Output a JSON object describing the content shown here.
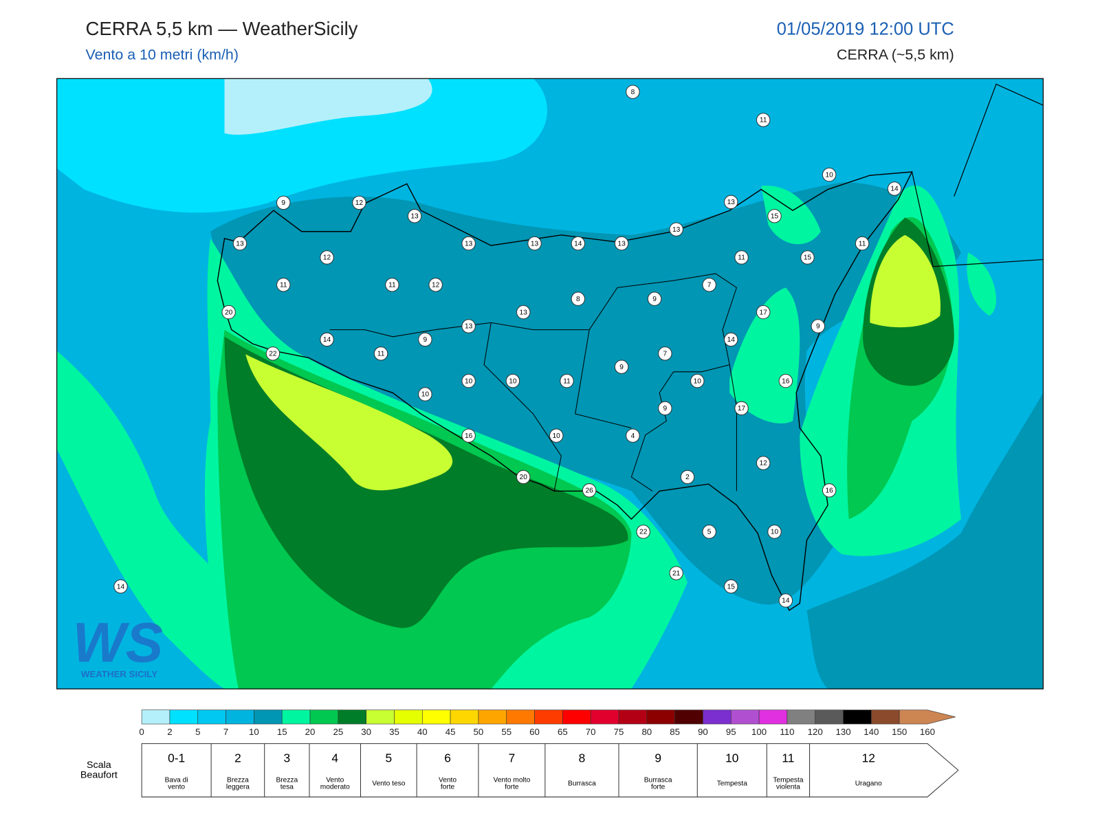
{
  "header": {
    "title": "CERRA 5,5 km — WeatherSicily",
    "subtitle": "Vento a 10 metri (km/h)",
    "datetime": "01/05/2019 12:00 UTC",
    "model": "CERRA (~5,5 km)"
  },
  "logo": {
    "mark": "WS",
    "name": "WEATHER SICILY"
  },
  "stations": [
    8,
    11,
    10,
    14,
    9,
    12,
    13,
    13,
    15,
    13,
    13,
    13,
    13,
    14,
    13,
    11,
    12,
    11,
    15,
    11,
    11,
    12,
    7,
    8,
    9,
    17,
    20,
    13,
    9,
    13,
    14,
    9,
    14,
    11,
    22,
    7,
    9,
    10,
    10,
    11,
    10,
    16,
    10,
    17,
    9,
    16,
    10,
    4,
    12,
    2,
    20,
    16,
    26,
    22,
    5,
    10,
    21,
    15,
    14,
    14
  ],
  "colorbar": {
    "ticks": [
      0,
      2,
      5,
      7,
      10,
      15,
      20,
      25,
      30,
      35,
      40,
      45,
      50,
      55,
      60,
      65,
      70,
      75,
      80,
      85,
      90,
      95,
      100,
      110,
      120,
      130,
      140,
      150,
      160
    ],
    "colors": [
      "#b4f0fb",
      "#00e1ff",
      "#00c8f0",
      "#00b4e0",
      "#0096b4",
      "#00f5a0",
      "#00c850",
      "#007d28",
      "#c8ff32",
      "#e6ff00",
      "#ffff00",
      "#ffd700",
      "#ffa500",
      "#ff7800",
      "#ff3c00",
      "#ff0000",
      "#e1002d",
      "#b40014",
      "#8c0000",
      "#500000",
      "#7b2fd0",
      "#b050d0",
      "#e030e0",
      "#808080",
      "#5a5a5a",
      "#000000",
      "#8b4a2b",
      "#cd8552"
    ]
  },
  "beaufort": {
    "title": [
      "Scala",
      "Beaufort"
    ],
    "levels": [
      {
        "force": "0-1",
        "description": [
          "Bava di",
          "vento"
        ]
      },
      {
        "force": "2",
        "description": [
          "Brezza",
          "leggera"
        ]
      },
      {
        "force": "3",
        "description": [
          "Brezza",
          "tesa"
        ]
      },
      {
        "force": "4",
        "description": [
          "Vento",
          "moderato"
        ]
      },
      {
        "force": "5",
        "description": [
          "Vento teso"
        ]
      },
      {
        "force": "6",
        "description": [
          "Vento",
          "forte"
        ]
      },
      {
        "force": "7",
        "description": [
          "Vento molto",
          "forte"
        ]
      },
      {
        "force": "8",
        "description": [
          "Burrasca"
        ]
      },
      {
        "force": "9",
        "description": [
          "Burrasca",
          "forte"
        ]
      },
      {
        "force": "10",
        "description": [
          "Tempesta"
        ]
      },
      {
        "force": "11",
        "description": [
          "Tempesta",
          "violenta"
        ]
      },
      {
        "force": "12",
        "description": [
          "Uragano"
        ]
      }
    ]
  }
}
